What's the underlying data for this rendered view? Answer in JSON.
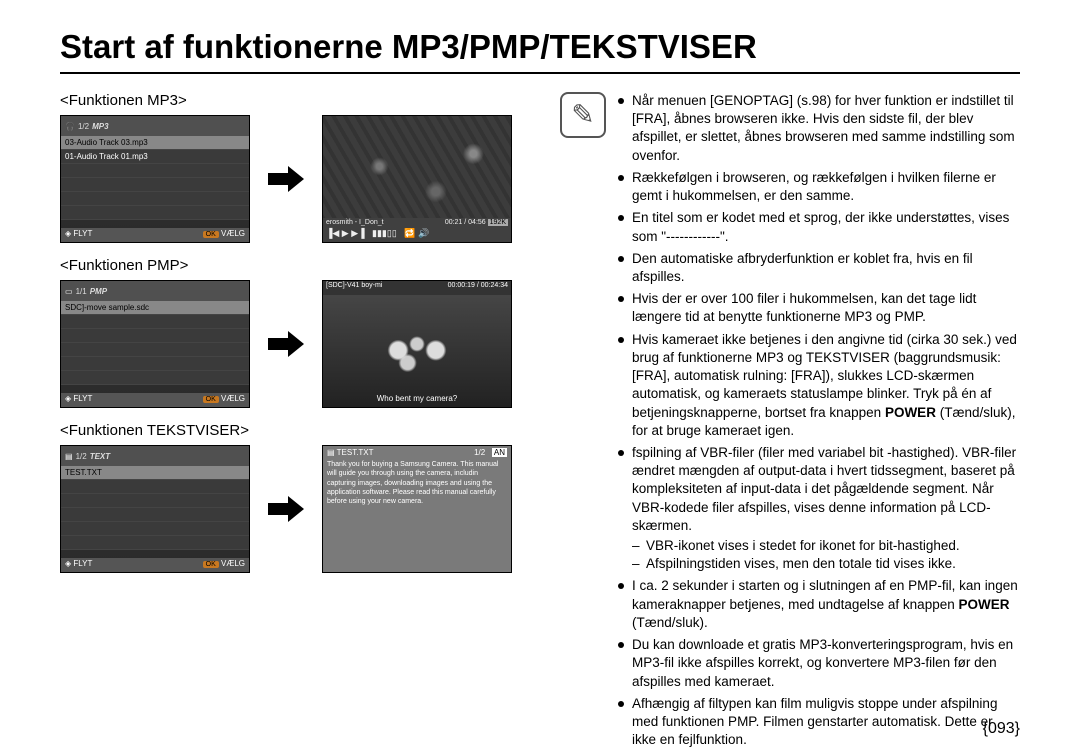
{
  "title": "Start af funktionerne MP3/PMP/TEKSTVISER",
  "page_number": "{093}",
  "sections": {
    "mp3": {
      "label": "<Funktionen MP3>"
    },
    "pmp": {
      "label": "<Funktionen PMP>"
    },
    "text": {
      "label": "<Funktionen TEKSTVISER>"
    }
  },
  "screens": {
    "mp3_list": {
      "counter": "1/2",
      "logo": "MP3",
      "rows": [
        "03-Audio Track 03.mp3",
        "01-Audio Track 01.mp3"
      ],
      "footer_left": "FLYT",
      "footer_ok": "OK",
      "footer_right": "VÆLG"
    },
    "mp3_play": {
      "title": "erosmith - I_Don_t",
      "time": "00:21 / 04:56",
      "bitrate": "192K"
    },
    "pmp_list": {
      "counter": "1/1",
      "logo": "PMP",
      "rows": [
        "SDC]-move sample.sdc"
      ],
      "footer_left": "FLYT",
      "footer_ok": "OK",
      "footer_right": "VÆLG"
    },
    "pmp_play": {
      "title": "[SDC]-V41 boy-mi",
      "time": "00:00:19 / 00:24:34",
      "caption": "Who bent my camera?"
    },
    "text_list": {
      "counter": "1/2",
      "logo": "TEXT",
      "rows": [
        "TEST.TXT"
      ],
      "footer_left": "FLYT",
      "footer_ok": "OK",
      "footer_right": "VÆLG"
    },
    "text_view": {
      "file": "TEST.TXT",
      "page": "1/2",
      "lang": "AN",
      "body": "Thank you for buying a Samsung Camera. This manual will guide you through using the camera, includin capturing images, downloading images and using the application software. Please read this manual carefully before using your new camera."
    }
  },
  "note": {
    "items": [
      "Når menuen [GENOPTAG] (s.98) for hver funktion er indstillet til [FRA], åbnes browseren ikke. Hvis den sidste fil, der blev afspillet, er slettet, åbnes browseren med samme indstilling som ovenfor.",
      "Rækkefølgen i browseren, og rækkefølgen i hvilken filerne er gemt i hukommelsen, er den samme.",
      "En titel som er kodet med et sprog, der ikke understøttes, vises som \"------------\".",
      "Den automatiske afbryderfunktion er koblet fra, hvis en fil afspilles.",
      "Hvis der er over 100 filer i hukommelsen, kan det tage lidt længere tid at benytte funktionerne MP3 og PMP.",
      "Hvis kameraet ikke betjenes i den angivne tid (cirka 30 sek.) ved brug af funktionerne MP3 og TEKSTVISER (baggrundsmusik: [FRA], automatisk rulning: [FRA]), slukkes LCD-skærmen automatisk, og kameraets statuslampe blinker. Tryk på én af betjeningsknapperne, bortset fra knappen <b>POWER</b> (Tænd/sluk), for at bruge kameraet igen.",
      "fspilning af VBR-filer (filer med variabel bit -hastighed). VBR-filer ændret mængden af output-data i hvert tidssegment, baseret på kompleksiteten af input-data i det pågældende segment. Når VBR-kodede filer afspilles, vises denne information på LCD-skærmen.",
      "I ca. 2 sekunder i starten og i slutningen af en PMP-fil, kan ingen kameraknapper betjenes, med undtagelse af knappen <b>POWER</b> (Tænd/sluk).",
      "Du kan downloade et gratis MP3-konverteringsprogram, hvis en MP3-fil ikke afspilles korrekt, og konvertere MP3-filen før den afspilles med kameraet.",
      "Afhængig af filtypen kan film muligvis stoppe under afspilning med funktionen PMP. Filmen genstarter automatisk. Dette er ikke en fejlfunktion."
    ],
    "sub_after_index": 6,
    "sub": [
      "VBR-ikonet vises i stedet for ikonet for bit-hastighed.",
      "Afspilningstiden vises, men den totale tid vises ikke."
    ]
  },
  "colors": {
    "text": "#000000",
    "bg": "#ffffff",
    "screen_bg": "#333333",
    "accent": "#c87820"
  }
}
